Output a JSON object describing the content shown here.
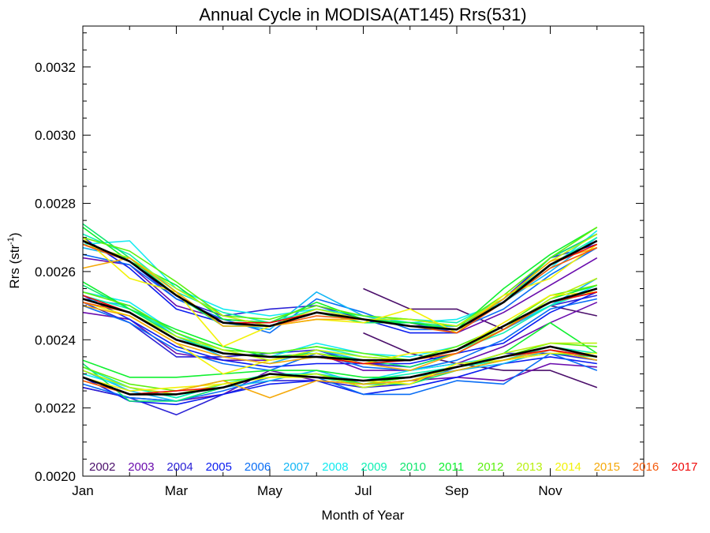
{
  "chart_data": {
    "type": "line",
    "title": "Annual Cycle in MODISA(AT145) Rrs(531)",
    "xlabel": "Month of Year",
    "ylabel_main": "Rrs (str",
    "ylabel_sup": "-1",
    "ylabel_close": ")",
    "xlim": [
      1,
      13
    ],
    "ylim": [
      0.002,
      0.00332
    ],
    "grid": false,
    "x_ticks": [
      {
        "x": 1,
        "label": "Jan"
      },
      {
        "x": 3,
        "label": "Mar"
      },
      {
        "x": 5,
        "label": "May"
      },
      {
        "x": 7,
        "label": "Jul"
      },
      {
        "x": 9,
        "label": "Sep"
      },
      {
        "x": 11,
        "label": "Nov"
      }
    ],
    "y_ticks": [
      {
        "y": 0.002,
        "label": "0.0020"
      },
      {
        "y": 0.0022,
        "label": "0.0022"
      },
      {
        "y": 0.0024,
        "label": "0.0024"
      },
      {
        "y": 0.0026,
        "label": "0.0026"
      },
      {
        "y": 0.0028,
        "label": "0.0028"
      },
      {
        "y": 0.003,
        "label": "0.0030"
      },
      {
        "y": 0.0032,
        "label": "0.0032"
      }
    ],
    "legend_position": "bottom",
    "legend": [
      {
        "year": "2002",
        "color": "#4b0f6b"
      },
      {
        "year": "2003",
        "color": "#6a0cad"
      },
      {
        "year": "2004",
        "color": "#2b22d6"
      },
      {
        "year": "2005",
        "color": "#0a1cf0"
      },
      {
        "year": "2006",
        "color": "#0a6ef5"
      },
      {
        "year": "2007",
        "color": "#12b6f5"
      },
      {
        "year": "2008",
        "color": "#12eaf0"
      },
      {
        "year": "2009",
        "color": "#10f0b4"
      },
      {
        "year": "2010",
        "color": "#10e66e"
      },
      {
        "year": "2011",
        "color": "#10f030"
      },
      {
        "year": "2012",
        "color": "#5ef010"
      },
      {
        "year": "2013",
        "color": "#b9f010"
      },
      {
        "year": "2014",
        "color": "#f2f20a"
      },
      {
        "year": "2015",
        "color": "#f5a90a"
      },
      {
        "year": "2016",
        "color": "#f55a0a"
      },
      {
        "year": "2017",
        "color": "#f00a0a"
      }
    ],
    "mean_lines": [
      {
        "name": "high",
        "color": "#000000",
        "values": [
          0.00269,
          0.00263,
          0.00253,
          0.00245,
          0.00244,
          0.00248,
          0.00246,
          0.00244,
          0.00243,
          0.00251,
          0.00262,
          0.00269
        ]
      },
      {
        "name": "mid",
        "color": "#000000",
        "values": [
          0.00252,
          0.00248,
          0.0024,
          0.00236,
          0.00235,
          0.00235,
          0.00234,
          0.00234,
          0.00237,
          0.00244,
          0.00251,
          0.00255
        ]
      },
      {
        "name": "low",
        "color": "#000000",
        "values": [
          0.00229,
          0.00224,
          0.00224,
          0.00226,
          0.0023,
          0.00229,
          0.00228,
          0.00229,
          0.00232,
          0.00235,
          0.00238,
          0.00235
        ]
      }
    ],
    "series": [
      {
        "year": "2002",
        "color": "#4b0f6b",
        "values": [
          null,
          null,
          null,
          null,
          null,
          null,
          0.00255,
          0.00249,
          0.00249,
          0.00243,
          0.0025,
          0.00247
        ]
      },
      {
        "year": "2002",
        "color": "#4b0f6b",
        "values": [
          null,
          null,
          null,
          null,
          null,
          null,
          0.00242,
          0.00236,
          0.00233,
          0.00231,
          0.00231,
          0.00226
        ]
      },
      {
        "year": "2003",
        "color": "#6a0cad",
        "values": [
          0.00264,
          0.00262,
          0.0025,
          0.00246,
          0.00245,
          0.00248,
          0.00246,
          0.00245,
          0.00242,
          0.00248,
          0.00256,
          0.00264
        ]
      },
      {
        "year": "2003",
        "color": "#6a0cad",
        "values": [
          0.00248,
          0.00246,
          0.00236,
          0.00234,
          0.00234,
          0.00236,
          0.00231,
          0.00231,
          0.00233,
          0.00238,
          0.00245,
          0.00251
        ]
      },
      {
        "year": "2003",
        "color": "#6a0cad",
        "values": [
          0.00226,
          0.00223,
          0.00222,
          0.00224,
          0.00231,
          0.00228,
          0.00227,
          0.00228,
          0.00229,
          0.00228,
          0.00233,
          0.00232
        ]
      },
      {
        "year": "2004",
        "color": "#2b22d6",
        "values": [
          0.00268,
          0.00263,
          0.00252,
          0.00247,
          0.00249,
          0.0025,
          0.00246,
          0.00244,
          0.00244,
          0.00252,
          0.00264,
          0.00268
        ]
      },
      {
        "year": "2004",
        "color": "#2b22d6",
        "values": [
          0.00251,
          0.00245,
          0.00235,
          0.00235,
          0.00236,
          0.00237,
          0.00233,
          0.00232,
          0.00236,
          0.00243,
          0.0025,
          0.00253
        ]
      },
      {
        "year": "2004",
        "color": "#2b22d6",
        "values": [
          0.00226,
          0.00223,
          0.00218,
          0.00224,
          0.00228,
          0.00228,
          0.00226,
          0.00227,
          0.00232,
          0.00236,
          0.00236,
          0.00234
        ]
      },
      {
        "year": "2005",
        "color": "#0a1cf0",
        "values": [
          0.0027,
          0.00261,
          0.00249,
          0.00245,
          0.00244,
          0.00248,
          0.00246,
          0.00242,
          0.00242,
          0.00252,
          0.00264,
          0.00271
        ]
      },
      {
        "year": "2005",
        "color": "#0a1cf0",
        "values": [
          0.00253,
          0.00246,
          0.00238,
          0.00234,
          0.00232,
          0.00233,
          0.00233,
          0.00233,
          0.00236,
          0.00239,
          0.00248,
          0.00254
        ]
      },
      {
        "year": "2005",
        "color": "#0a1cf0",
        "values": [
          0.00229,
          0.00222,
          0.00221,
          0.00224,
          0.00227,
          0.00228,
          0.00224,
          0.00226,
          0.00229,
          0.00233,
          0.00235,
          0.00233
        ]
      },
      {
        "year": "2006",
        "color": "#0a6ef5",
        "values": [
          0.00265,
          0.00262,
          0.00252,
          0.00246,
          0.00242,
          0.00252,
          0.00248,
          0.00243,
          0.00243,
          0.00249,
          0.00259,
          0.00267
        ]
      },
      {
        "year": "2006",
        "color": "#0a6ef5",
        "values": [
          0.0025,
          0.00245,
          0.00237,
          0.00233,
          0.00231,
          0.00236,
          0.00232,
          0.00231,
          0.00234,
          0.0024,
          0.00249,
          0.00252
        ]
      },
      {
        "year": "2006",
        "color": "#0a6ef5",
        "values": [
          0.00227,
          0.00223,
          0.00222,
          0.00225,
          0.00229,
          0.00229,
          0.00224,
          0.00224,
          0.00228,
          0.00227,
          0.00236,
          0.00231
        ]
      },
      {
        "year": "2007",
        "color": "#12b6f5",
        "values": [
          0.00267,
          0.00264,
          0.00253,
          0.00245,
          0.00243,
          0.00254,
          0.00247,
          0.00244,
          0.00244,
          0.00251,
          0.0026,
          0.0027
        ]
      },
      {
        "year": "2007",
        "color": "#12b6f5",
        "values": [
          0.00252,
          0.0025,
          0.00241,
          0.00235,
          0.00233,
          0.00237,
          0.00234,
          0.00234,
          0.00237,
          0.00243,
          0.0025,
          0.00258
        ]
      },
      {
        "year": "2007",
        "color": "#12b6f5",
        "values": [
          0.00231,
          0.00225,
          0.00222,
          0.00226,
          0.00228,
          0.00231,
          0.00227,
          0.00229,
          0.00231,
          0.00233,
          0.00237,
          0.00234
        ]
      },
      {
        "year": "2008",
        "color": "#12eaf0",
        "values": [
          0.00268,
          0.00269,
          0.00255,
          0.00249,
          0.00247,
          0.00249,
          0.00247,
          0.00245,
          0.00246,
          0.00251,
          0.00261,
          0.00272
        ]
      },
      {
        "year": "2008",
        "color": "#12eaf0",
        "values": [
          0.00254,
          0.00251,
          0.00242,
          0.00236,
          0.00235,
          0.00239,
          0.00236,
          0.00235,
          0.00238,
          0.00244,
          0.0025,
          0.00256
        ]
      },
      {
        "year": "2008",
        "color": "#12eaf0",
        "values": [
          0.0023,
          0.00226,
          0.00223,
          0.00227,
          0.00229,
          0.0023,
          0.00228,
          0.00231,
          0.00233,
          0.00235,
          0.00237,
          0.00235
        ]
      },
      {
        "year": "2009",
        "color": "#10f0b4",
        "values": [
          0.00271,
          0.00265,
          0.00254,
          0.00248,
          0.00245,
          0.00249,
          0.00247,
          0.00246,
          0.00245,
          0.00252,
          0.00262,
          0.0027
        ]
      },
      {
        "year": "2009",
        "color": "#10f0b4",
        "values": [
          0.00253,
          0.00249,
          0.00242,
          0.00237,
          0.00236,
          0.00238,
          0.00235,
          0.00234,
          0.00237,
          0.00242,
          0.0025,
          0.00255
        ]
      },
      {
        "year": "2009",
        "color": "#10f0b4",
        "values": [
          0.00232,
          0.00226,
          0.00223,
          0.00227,
          0.0023,
          0.0023,
          0.00228,
          0.0023,
          0.00232,
          0.00234,
          0.00238,
          0.00236
        ]
      },
      {
        "year": "2010",
        "color": "#10e66e",
        "values": [
          0.00274,
          0.00264,
          0.00253,
          0.00244,
          0.00244,
          0.00248,
          0.00245,
          0.00245,
          0.00244,
          0.00251,
          0.00264,
          0.00271
        ]
      },
      {
        "year": "2010",
        "color": "#10e66e",
        "values": [
          0.00256,
          0.00249,
          0.00241,
          0.00236,
          0.00235,
          0.00236,
          0.00234,
          0.00232,
          0.00236,
          0.00243,
          0.00251,
          0.00255
        ]
      },
      {
        "year": "2010",
        "color": "#10e66e",
        "values": [
          0.00233,
          0.00222,
          0.00222,
          0.00226,
          0.0023,
          0.00229,
          0.00227,
          0.00227,
          0.00231,
          0.00234,
          0.00236,
          0.00235
        ]
      },
      {
        "year": "2011",
        "color": "#10f030",
        "values": [
          0.00273,
          0.00263,
          0.00256,
          0.00246,
          0.00245,
          0.00251,
          0.00246,
          0.00245,
          0.00243,
          0.00255,
          0.00265,
          0.00273
        ]
      },
      {
        "year": "2011",
        "color": "#10f030",
        "values": [
          0.00257,
          0.00249,
          0.00243,
          0.00238,
          0.00235,
          0.00236,
          0.00234,
          0.00234,
          0.00237,
          0.00243,
          0.00252,
          0.00256
        ]
      },
      {
        "year": "2011",
        "color": "#10f030",
        "values": [
          0.00234,
          0.00229,
          0.00229,
          0.0023,
          0.00231,
          0.00231,
          0.00229,
          0.00229,
          0.00232,
          0.00236,
          0.00245,
          0.00236
        ]
      },
      {
        "year": "2012",
        "color": "#5ef010",
        "values": [
          0.0027,
          0.00266,
          0.00257,
          0.00247,
          0.00246,
          0.0025,
          0.00247,
          0.00246,
          0.00244,
          0.00253,
          0.00264,
          0.00273
        ]
      },
      {
        "year": "2012",
        "color": "#5ef010",
        "values": [
          0.00254,
          0.0025,
          0.00242,
          0.00237,
          0.00236,
          0.00238,
          0.00236,
          0.00234,
          0.00238,
          0.00244,
          0.00253,
          0.00256
        ]
      },
      {
        "year": "2012",
        "color": "#5ef010",
        "values": [
          0.00232,
          0.00227,
          0.00225,
          0.00228,
          0.00229,
          0.0023,
          0.00227,
          0.00229,
          0.00232,
          0.00235,
          0.00239,
          0.00238
        ]
      },
      {
        "year": "2013",
        "color": "#b9f010",
        "values": [
          0.00268,
          0.00264,
          0.00255,
          0.00247,
          0.00244,
          0.00249,
          0.00246,
          0.00246,
          0.00244,
          0.00252,
          0.00263,
          0.00271
        ]
      },
      {
        "year": "2013",
        "color": "#b9f010",
        "values": [
          0.00252,
          0.00248,
          0.00241,
          0.00237,
          0.00234,
          0.00237,
          0.00235,
          0.00234,
          0.00237,
          0.00243,
          0.00252,
          0.00258
        ]
      },
      {
        "year": "2013",
        "color": "#b9f010",
        "values": [
          0.00231,
          0.00226,
          0.00224,
          0.00227,
          0.00229,
          0.0023,
          0.00226,
          0.00228,
          0.00232,
          0.00236,
          0.00239,
          0.00239
        ]
      },
      {
        "year": "2014",
        "color": "#f2f20a",
        "values": [
          0.0027,
          0.00258,
          0.00254,
          0.00238,
          0.00244,
          0.00246,
          0.00245,
          0.00249,
          0.00242,
          0.00253,
          0.00258,
          0.00268
        ]
      },
      {
        "year": "2014",
        "color": "#f2f20a",
        "values": [
          0.00251,
          0.00247,
          0.00239,
          0.0023,
          0.00234,
          0.00236,
          0.00233,
          0.00236,
          0.00237,
          0.00245,
          0.00253,
          0.00254
        ]
      },
      {
        "year": "2014",
        "color": "#f2f20a",
        "values": [
          0.00229,
          0.00225,
          0.00226,
          0.00227,
          0.00229,
          0.00229,
          0.00228,
          0.00227,
          0.00233,
          0.00234,
          0.00236,
          0.00236
        ]
      },
      {
        "year": "2015",
        "color": "#f5a90a",
        "values": [
          0.00261,
          0.00264,
          0.00254,
          0.00244,
          0.00244,
          0.00246,
          0.00246,
          0.00244,
          0.00243,
          0.00252,
          0.00263,
          0.00267
        ]
      },
      {
        "year": "2015",
        "color": "#f5a90a",
        "values": [
          0.0025,
          0.00247,
          0.00239,
          0.00235,
          0.00233,
          0.00235,
          0.00233,
          0.00231,
          0.00236,
          0.00243,
          0.00251,
          0.00254
        ]
      },
      {
        "year": "2015",
        "color": "#f5a90a",
        "values": [
          0.00228,
          0.00224,
          0.00225,
          0.00228,
          0.00223,
          0.00228,
          0.00227,
          0.00228,
          0.00231,
          0.00234,
          0.00237,
          0.00234
        ]
      },
      {
        "year": "2016",
        "color": "#f55a0a",
        "values": [
          0.00268,
          0.00263,
          0.00253,
          0.00245,
          0.00244,
          0.00247,
          0.00246,
          0.00244,
          0.00242,
          0.00251,
          0.00261,
          0.00267
        ]
      },
      {
        "year": "2016",
        "color": "#f55a0a",
        "values": [
          0.00251,
          0.00248,
          0.0024,
          0.00236,
          0.00235,
          0.00235,
          0.00234,
          0.00234,
          0.00236,
          0.00243,
          0.00251,
          0.00254
        ]
      },
      {
        "year": "2016",
        "color": "#f55a0a",
        "values": [
          0.00228,
          0.00224,
          0.00224,
          0.00226,
          0.0023,
          0.00229,
          0.00228,
          0.00229,
          0.00232,
          0.00235,
          0.00238,
          0.00235
        ]
      },
      {
        "year": "2017",
        "color": "#f00a0a",
        "values": [
          0.00269,
          0.00263,
          0.00253,
          0.00245,
          0.00245,
          0.00248,
          0.00246,
          0.00244,
          0.00243,
          0.00251,
          0.00262,
          0.00268
        ]
      },
      {
        "year": "2017",
        "color": "#f00a0a",
        "values": [
          0.00253,
          0.00248,
          0.0024,
          0.00236,
          0.00235,
          0.00235,
          0.00233,
          0.00234,
          0.00237,
          0.00244,
          0.00251,
          0.00254
        ]
      },
      {
        "year": "2017",
        "color": "#f00a0a",
        "values": [
          0.00229,
          0.00224,
          0.00225,
          0.00226,
          0.0023,
          0.00229,
          0.00228,
          0.00229,
          0.00232,
          0.00235,
          0.00237,
          0.00235
        ]
      }
    ]
  }
}
